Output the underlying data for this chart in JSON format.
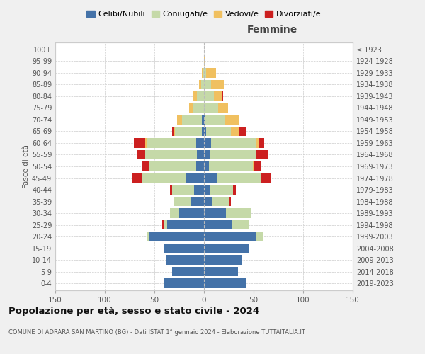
{
  "age_groups": [
    "0-4",
    "5-9",
    "10-14",
    "15-19",
    "20-24",
    "25-29",
    "30-34",
    "35-39",
    "40-44",
    "45-49",
    "50-54",
    "55-59",
    "60-64",
    "65-69",
    "70-74",
    "75-79",
    "80-84",
    "85-89",
    "90-94",
    "95-99",
    "100+"
  ],
  "birth_years": [
    "2019-2023",
    "2014-2018",
    "2009-2013",
    "2004-2008",
    "1999-2003",
    "1994-1998",
    "1989-1993",
    "1984-1988",
    "1979-1983",
    "1974-1978",
    "1969-1973",
    "1964-1968",
    "1959-1963",
    "1954-1958",
    "1949-1953",
    "1944-1948",
    "1939-1943",
    "1934-1938",
    "1929-1933",
    "1924-1928",
    "≤ 1923"
  ],
  "male": {
    "celibi": [
      40,
      32,
      38,
      40,
      55,
      37,
      25,
      13,
      10,
      18,
      8,
      7,
      8,
      2,
      2,
      0,
      0,
      0,
      0,
      0,
      0
    ],
    "coniugati": [
      0,
      0,
      0,
      0,
      3,
      4,
      9,
      17,
      22,
      45,
      47,
      52,
      50,
      27,
      20,
      11,
      7,
      3,
      1,
      0,
      0
    ],
    "vedovi": [
      0,
      0,
      0,
      0,
      0,
      0,
      0,
      0,
      0,
      0,
      0,
      0,
      1,
      2,
      5,
      4,
      4,
      2,
      1,
      0,
      0
    ],
    "divorziati": [
      0,
      0,
      0,
      0,
      0,
      1,
      0,
      1,
      2,
      9,
      7,
      8,
      12,
      1,
      0,
      0,
      0,
      0,
      0,
      0,
      0
    ]
  },
  "female": {
    "nubili": [
      43,
      34,
      38,
      46,
      53,
      28,
      22,
      8,
      6,
      13,
      5,
      6,
      7,
      2,
      1,
      0,
      0,
      0,
      0,
      0,
      0
    ],
    "coniugate": [
      0,
      0,
      0,
      0,
      6,
      18,
      25,
      18,
      23,
      44,
      44,
      46,
      45,
      25,
      20,
      14,
      10,
      7,
      2,
      0,
      0
    ],
    "vedove": [
      0,
      0,
      0,
      0,
      0,
      0,
      0,
      0,
      0,
      0,
      1,
      1,
      3,
      8,
      14,
      10,
      8,
      13,
      10,
      1,
      0
    ],
    "divorziate": [
      0,
      0,
      0,
      0,
      1,
      0,
      0,
      1,
      3,
      10,
      7,
      11,
      6,
      7,
      1,
      0,
      1,
      0,
      0,
      0,
      0
    ]
  },
  "colors": {
    "celibi": "#4472a8",
    "coniugati": "#c5d9a8",
    "vedovi": "#f0c060",
    "divorziati": "#cc2020"
  },
  "xlim": 150,
  "title": "Popolazione per età, sesso e stato civile - 2024",
  "subtitle": "COMUNE DI ADRARA SAN MARTINO (BG) - Dati ISTAT 1° gennaio 2024 - Elaborazione TUTTAITALIA.IT",
  "ylabel_left": "Fasce di età",
  "label_femmine": "Femmine",
  "background_color": "#f0f0f0",
  "plot_bg_color": "#ffffff",
  "legend_labels": [
    "Celibi/Nubili",
    "Coniugati/e",
    "Vedovi/e",
    "Divorziati/e"
  ]
}
